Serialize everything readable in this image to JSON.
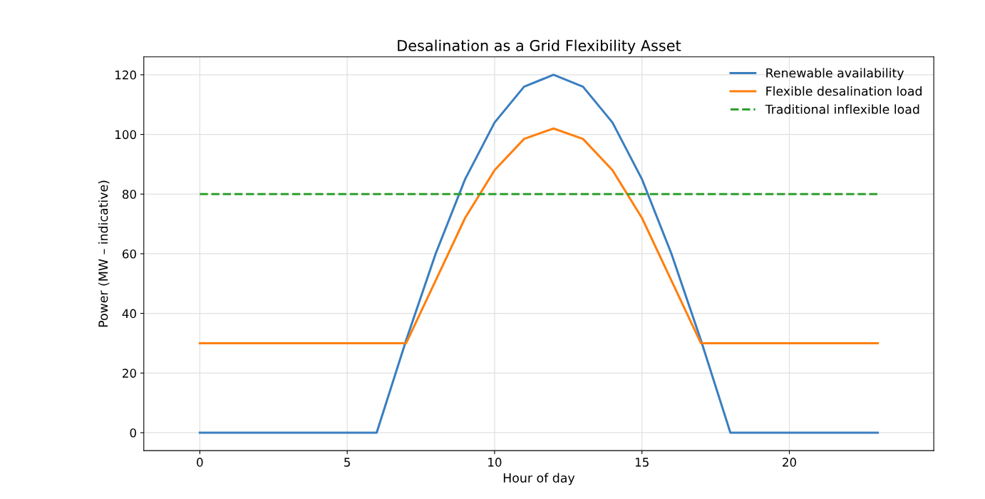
{
  "chart_data": {
    "type": "line",
    "title": "Desalination as a Grid Flexibility Asset",
    "xlabel": "Hour of day",
    "ylabel": "Power (MW – indicative)",
    "x": [
      0,
      1,
      2,
      3,
      4,
      5,
      6,
      7,
      8,
      9,
      10,
      11,
      12,
      13,
      14,
      15,
      16,
      17,
      18,
      19,
      20,
      21,
      22,
      23
    ],
    "series": [
      {
        "name": "Renewable availability",
        "color": "#3a7ebf",
        "line_style": "solid",
        "values": [
          0,
          0,
          0,
          0,
          0,
          0,
          0,
          31,
          60,
          85,
          104,
          116,
          120,
          116,
          104,
          85,
          60,
          31,
          0,
          0,
          0,
          0,
          0,
          0
        ]
      },
      {
        "name": "Flexible desalination load",
        "color": "#ff7f0e",
        "line_style": "solid",
        "values": [
          30,
          30,
          30,
          30,
          30,
          30,
          30,
          30,
          51,
          72,
          88,
          98.5,
          102,
          98.5,
          88,
          72,
          51,
          30,
          30,
          30,
          30,
          30,
          30,
          30
        ]
      },
      {
        "name": "Traditional inflexible load",
        "color": "#2ca02c",
        "line_style": "dashed",
        "values": [
          80,
          80,
          80,
          80,
          80,
          80,
          80,
          80,
          80,
          80,
          80,
          80,
          80,
          80,
          80,
          80,
          80,
          80,
          80,
          80,
          80,
          80,
          80,
          80
        ]
      }
    ],
    "xlim": [
      -1.9,
      24.9
    ],
    "xticks": [
      0,
      5,
      10,
      15,
      20
    ],
    "ylim": [
      -6,
      126
    ],
    "yticks": [
      0,
      20,
      40,
      60,
      80,
      100,
      120
    ],
    "grid": true,
    "legend": "top right",
    "marker": "none"
  }
}
